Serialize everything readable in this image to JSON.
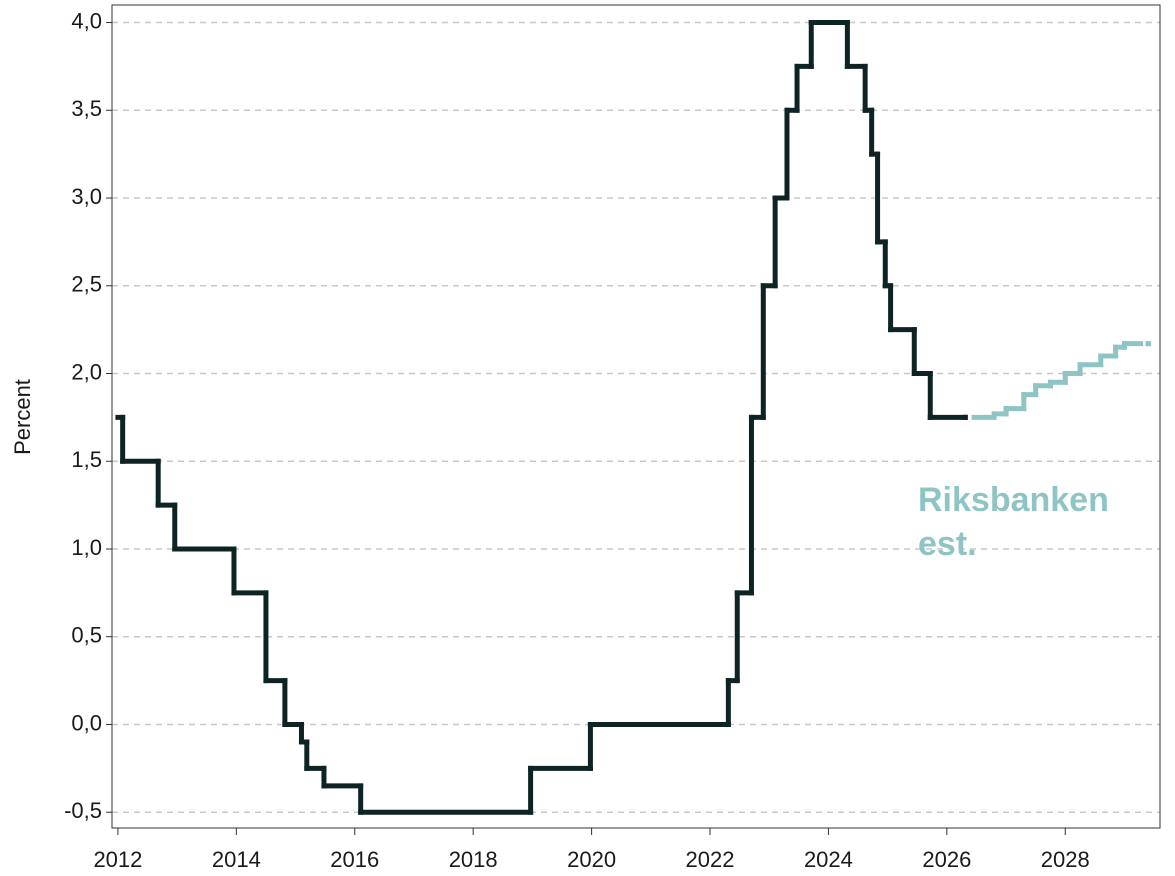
{
  "chart_data": {
    "type": "line",
    "ylabel": "Percent",
    "annotation": [
      "Riksbanken",
      "est."
    ],
    "xlim": [
      2011.9,
      2029.6
    ],
    "ylim": [
      -0.59,
      4.1
    ],
    "xticks": [
      2012,
      2014,
      2016,
      2018,
      2020,
      2022,
      2024,
      2026,
      2028
    ],
    "yticks": [
      {
        "value": -0.5,
        "label": "-0,5"
      },
      {
        "value": 0,
        "label": "0,0"
      },
      {
        "value": 0.5,
        "label": "0,5"
      },
      {
        "value": 1,
        "label": "1,0"
      },
      {
        "value": 1.5,
        "label": "1,5"
      },
      {
        "value": 2,
        "label": "2,0"
      },
      {
        "value": 2.5,
        "label": "2,5"
      },
      {
        "value": 3,
        "label": "3,0"
      },
      {
        "value": 3.5,
        "label": "3,5"
      },
      {
        "value": 4,
        "label": "4,0"
      }
    ],
    "grid": true,
    "step": true,
    "series": [
      {
        "color": "#0e2424",
        "dashed": false,
        "x": [
          2012.0,
          2012.08,
          2012.68,
          2012.96,
          2013.96,
          2014.5,
          2014.82,
          2015.1,
          2015.19,
          2015.48,
          2016.1,
          2018.97,
          2019.98,
          2022.31,
          2022.46,
          2022.7,
          2022.9,
          2023.1,
          2023.3,
          2023.47,
          2023.71,
          2024.32,
          2024.62,
          2024.73,
          2024.83,
          2024.96,
          2025.05,
          2025.45,
          2025.72,
          2026.31
        ],
        "values": [
          1.75,
          1.5,
          1.25,
          1.0,
          0.75,
          0.25,
          0.0,
          -0.1,
          -0.25,
          -0.35,
          -0.5,
          -0.25,
          0.0,
          0.25,
          0.75,
          1.75,
          2.5,
          3.0,
          3.5,
          3.75,
          4.0,
          3.75,
          3.5,
          3.25,
          2.75,
          2.5,
          2.25,
          2.0,
          1.75,
          1.75
        ]
      },
      {
        "color": "#8fc4c4",
        "dashed": true,
        "x": [
          2026.46,
          2026.8,
          2027.0,
          2027.3,
          2027.5,
          2027.75,
          2028.0,
          2028.25,
          2028.6,
          2028.85,
          2029.0,
          2029.4
        ],
        "values": [
          1.75,
          1.77,
          1.8,
          1.88,
          1.93,
          1.95,
          2.0,
          2.05,
          2.1,
          2.15,
          2.17,
          2.17
        ]
      }
    ]
  }
}
